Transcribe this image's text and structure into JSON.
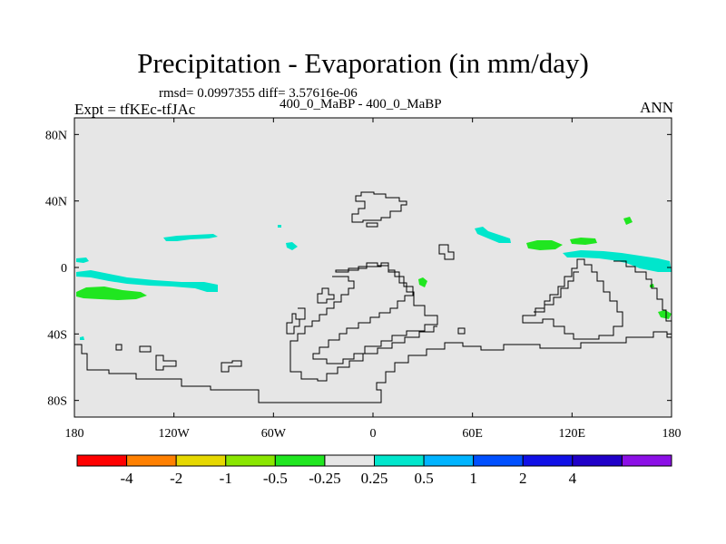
{
  "header": {
    "title": "Precipitation - Evaporation (in mm/day)",
    "stats": "rmsd= 0.0997355 diff= 3.57616e-06",
    "experiment": "Expt = tfKEc-tfJAc",
    "case": "400_0_MaBP - 400_0_MaBP",
    "season": "ANN"
  },
  "map": {
    "background_color": "#e6e6e6",
    "outline_color": "#000000",
    "lat_ticks": [
      "80N",
      "40N",
      "0",
      "40S",
      "80S"
    ],
    "lat_values": [
      80,
      40,
      0,
      -40,
      -80
    ],
    "lon_ticks": [
      "180",
      "120W",
      "60W",
      "0",
      "60E",
      "120E",
      "180"
    ],
    "lon_values": [
      -180,
      -120,
      -60,
      0,
      60,
      120,
      180
    ],
    "lat_range": [
      -90,
      90
    ],
    "lon_range": [
      -180,
      180
    ]
  },
  "colorbar": {
    "colors": [
      "#ff0000",
      "#ff8000",
      "#e6d800",
      "#8ae600",
      "#20e620",
      "#e6e6e6",
      "#00e6cc",
      "#00b4ff",
      "#0050ff",
      "#1010e6",
      "#2000c8",
      "#8c10e6"
    ],
    "labels": [
      "-4",
      "-2",
      "-1",
      "-0.5",
      "-0.25",
      "0.25",
      "0.5",
      "1",
      "2",
      "4"
    ]
  }
}
